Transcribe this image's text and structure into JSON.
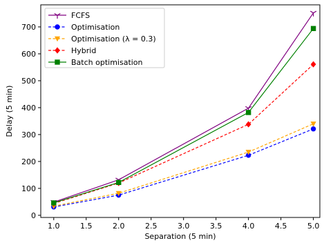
{
  "chart_data": {
    "type": "line",
    "xlabel": "Separation (5 min)",
    "ylabel": "Delay (5 min)",
    "xlim": [
      0.8,
      5.1
    ],
    "ylim": [
      -8,
      782
    ],
    "xticks": [
      1.0,
      1.5,
      2.0,
      2.5,
      3.0,
      3.5,
      4.0,
      4.5,
      5.0
    ],
    "xtick_labels": [
      "1.0",
      "1.5",
      "2.0",
      "2.5",
      "3.0",
      "3.5",
      "4.0",
      "4.5",
      "5.0"
    ],
    "yticks": [
      0,
      100,
      200,
      300,
      400,
      500,
      600,
      700
    ],
    "ytick_labels": [
      "0",
      "100",
      "200",
      "300",
      "400",
      "500",
      "600",
      "700"
    ],
    "grid": false,
    "legend_position": "top-left",
    "x": [
      1.0,
      2.0,
      4.0,
      5.0
    ],
    "series": [
      {
        "name": "FCFS",
        "values": [
          49,
          132,
          398,
          752
        ],
        "color": "#800080",
        "dash": "solid",
        "marker": "tri_down"
      },
      {
        "name": "Optimisation",
        "values": [
          31,
          75,
          223,
          321
        ],
        "color": "#0000ff",
        "dash": "dashed",
        "marker": "circle"
      },
      {
        "name": "Optimisation (λ = 0.3)",
        "values": [
          34,
          82,
          235,
          340
        ],
        "color": "#ffa500",
        "dash": "dashed",
        "marker": "triangle_down"
      },
      {
        "name": "Hybrid",
        "values": [
          44,
          120,
          338,
          561
        ],
        "color": "#ff0000",
        "dash": "dashed",
        "marker": "diamond"
      },
      {
        "name": "Batch optimisation",
        "values": [
          46,
          122,
          382,
          694
        ],
        "color": "#008000",
        "dash": "solid",
        "marker": "square"
      }
    ]
  }
}
